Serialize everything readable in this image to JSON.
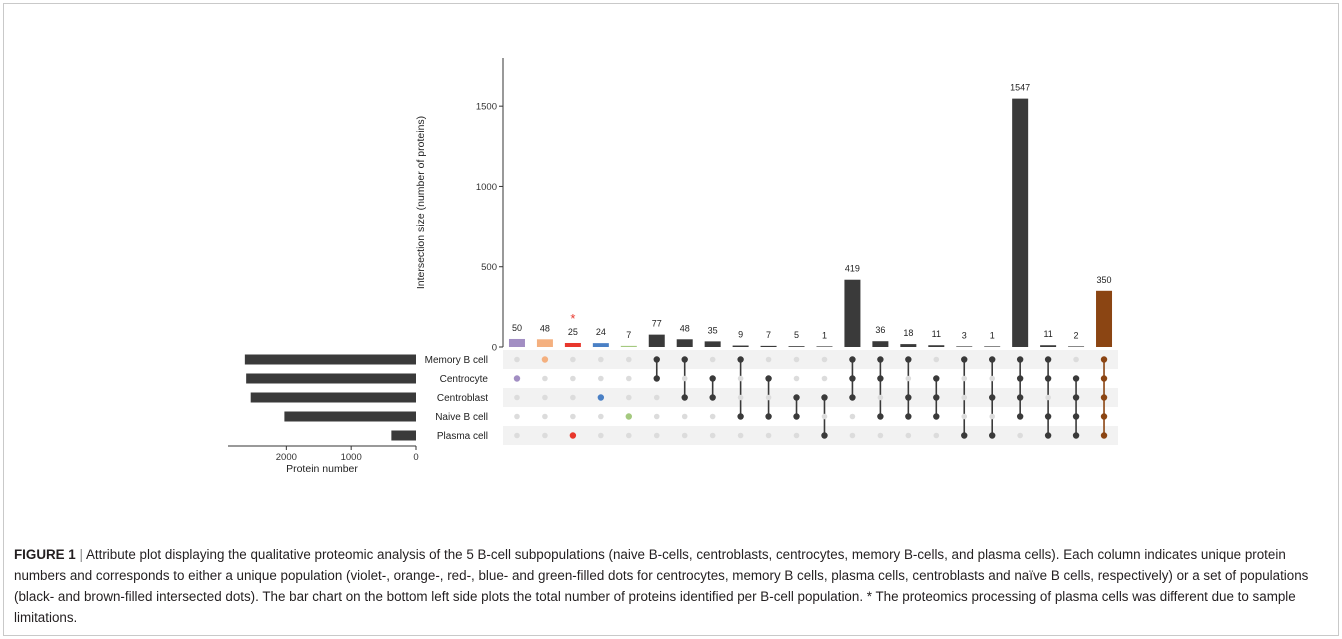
{
  "caption": {
    "label": "FIGURE 1",
    "separator": "|",
    "text": "Attribute plot displaying the qualitative proteomic analysis of the 5 B-cell subpopulations (naive B-cells, centroblasts, centrocytes, memory B-cells, and plasma cells). Each column indicates unique protein numbers and corresponds to either a unique population (violet-, orange-, red-, blue- and green-filled dots for centrocytes, memory B cells, plasma cells, centroblasts and naïve B cells, respectively) or a set of populations (black- and brown-filled intersected dots). The bar chart on the bottom left side plots the total number of proteins identified per B-cell population. * The proteomics processing of plasma cells was different due to sample limitations."
  },
  "chart_data": {
    "type": "bar",
    "subtype": "upset",
    "ylabel": "Intersection size (number of proteins)",
    "ylim": [
      0,
      1800
    ],
    "yticks": [
      0,
      500,
      1000,
      1500
    ],
    "sets": [
      "Memory B cell",
      "Centrocyte",
      "Centroblast",
      "Naive B cell",
      "Plasma cell"
    ],
    "set_sizes": {
      "xlabel": "Protein number",
      "xticks": [
        2000,
        1000,
        0
      ],
      "xlim": [
        2900,
        0
      ],
      "values": [
        2640,
        2620,
        2550,
        2030,
        380
      ]
    },
    "intersections": [
      {
        "size": 50,
        "sets": [
          1
        ],
        "color": "#a28ec3"
      },
      {
        "size": 48,
        "sets": [
          0
        ],
        "color": "#f4b07f"
      },
      {
        "size": 25,
        "sets": [
          4
        ],
        "color": "#e8372c",
        "annotation": "*"
      },
      {
        "size": 24,
        "sets": [
          2
        ],
        "color": "#4a80c5"
      },
      {
        "size": 7,
        "sets": [
          3
        ],
        "color": "#a4c97f"
      },
      {
        "size": 77,
        "sets": [
          0,
          1
        ],
        "color": "#3a3a3a"
      },
      {
        "size": 48,
        "sets": [
          0,
          2
        ],
        "color": "#3a3a3a"
      },
      {
        "size": 35,
        "sets": [
          1,
          2
        ],
        "color": "#3a3a3a"
      },
      {
        "size": 9,
        "sets": [
          0,
          3
        ],
        "color": "#3a3a3a"
      },
      {
        "size": 7,
        "sets": [
          1,
          3
        ],
        "color": "#3a3a3a"
      },
      {
        "size": 5,
        "sets": [
          2,
          3
        ],
        "color": "#3a3a3a"
      },
      {
        "size": 1,
        "sets": [
          2,
          4
        ],
        "color": "#3a3a3a"
      },
      {
        "size": 419,
        "sets": [
          0,
          1,
          2
        ],
        "color": "#3a3a3a"
      },
      {
        "size": 36,
        "sets": [
          0,
          1,
          3
        ],
        "color": "#3a3a3a"
      },
      {
        "size": 18,
        "sets": [
          0,
          2,
          3
        ],
        "color": "#3a3a3a"
      },
      {
        "size": 11,
        "sets": [
          1,
          2,
          3
        ],
        "color": "#3a3a3a"
      },
      {
        "size": 3,
        "sets": [
          0,
          4
        ],
        "color": "#3a3a3a"
      },
      {
        "size": 1,
        "sets": [
          0,
          2,
          4
        ],
        "color": "#3a3a3a"
      },
      {
        "size": 1547,
        "sets": [
          0,
          1,
          2,
          3
        ],
        "color": "#3a3a3a"
      },
      {
        "size": 11,
        "sets": [
          0,
          1,
          3,
          4
        ],
        "color": "#3a3a3a"
      },
      {
        "size": 2,
        "sets": [
          1,
          2,
          3,
          4
        ],
        "color": "#3a3a3a"
      },
      {
        "size": 350,
        "sets": [
          0,
          1,
          2,
          3,
          4
        ],
        "color": "#8b4513"
      }
    ],
    "colors": {
      "bar_default": "#3a3a3a",
      "set_bar": "#3a3a3a",
      "dot_inactive": "#dcdcdc",
      "row_stripe": "#f2f2f2",
      "annotation": "#e8372c"
    },
    "grid": false
  }
}
